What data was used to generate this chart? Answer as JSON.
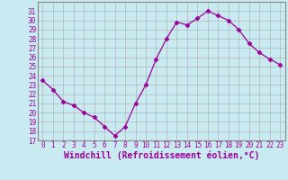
{
  "x": [
    0,
    1,
    2,
    3,
    4,
    5,
    6,
    7,
    8,
    9,
    10,
    11,
    12,
    13,
    14,
    15,
    16,
    17,
    18,
    19,
    20,
    21,
    22,
    23
  ],
  "y": [
    23.5,
    22.5,
    21.2,
    20.8,
    20.0,
    19.5,
    18.5,
    17.5,
    18.5,
    21.0,
    23.0,
    25.8,
    28.0,
    29.8,
    29.5,
    30.2,
    31.0,
    30.5,
    30.0,
    29.0,
    27.5,
    26.5,
    25.8,
    25.2
  ],
  "line_color": "#990099",
  "marker": "D",
  "markersize": 2.5,
  "linewidth": 0.9,
  "bg_color": "#c8eaf0",
  "grid_color": "#aaaaaa",
  "xlabel": "Windchill (Refroidissement éolien,°C)",
  "xlabel_fontsize": 7,
  "xlim": [
    -0.5,
    23.5
  ],
  "ylim": [
    17,
    32
  ],
  "yticks": [
    17,
    18,
    19,
    20,
    21,
    22,
    23,
    24,
    25,
    26,
    27,
    28,
    29,
    30,
    31
  ],
  "xticks": [
    0,
    1,
    2,
    3,
    4,
    5,
    6,
    7,
    8,
    9,
    10,
    11,
    12,
    13,
    14,
    15,
    16,
    17,
    18,
    19,
    20,
    21,
    22,
    23
  ],
  "tick_fontsize": 5.5,
  "spine_color": "#888888"
}
